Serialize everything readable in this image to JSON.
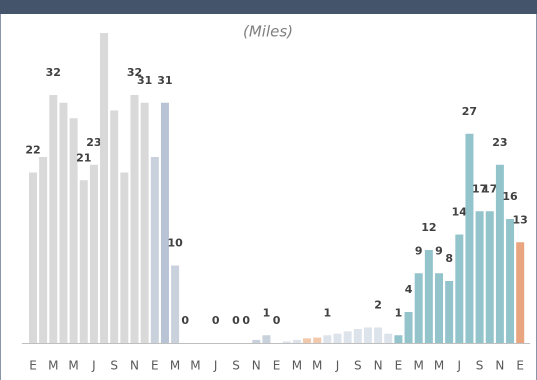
{
  "chart_data": {
    "type": "bar",
    "title": "(Miles)",
    "categories": [
      "E",
      null,
      "M",
      null,
      "M",
      null,
      "J",
      null,
      "S",
      null,
      "N",
      null,
      "E",
      null,
      "M",
      null,
      "M",
      null,
      "J",
      null,
      "S",
      null,
      "N",
      null,
      "E",
      null,
      "M",
      null,
      "M",
      null,
      "J",
      null,
      "S",
      null,
      "N",
      null,
      "E",
      null,
      "M",
      null,
      "M",
      null,
      "J",
      null,
      "S",
      null,
      "N",
      null,
      "E"
    ],
    "values": [
      22,
      24,
      32,
      31,
      29,
      21,
      23,
      40,
      30,
      22,
      32,
      31,
      24,
      31,
      10,
      0,
      0,
      0,
      0,
      0,
      0,
      0,
      0.4,
      1,
      0,
      0.2,
      0.4,
      0.6,
      0.7,
      1,
      1.2,
      1.5,
      1.8,
      2,
      2,
      1.2,
      1,
      4,
      9,
      12,
      9,
      8,
      14,
      27,
      17,
      17,
      23,
      16,
      13
    ],
    "value_labels": [
      "22",
      null,
      "32",
      null,
      null,
      "21",
      "23",
      null,
      null,
      null,
      "32",
      "31",
      null,
      "31",
      "10",
      "0",
      null,
      null,
      "0",
      null,
      "0",
      "0",
      null,
      "1",
      "0",
      null,
      null,
      null,
      null,
      "1",
      null,
      null,
      null,
      null,
      "2",
      null,
      "1",
      "4",
      "9",
      "12",
      "9",
      "8",
      "14",
      "27",
      "17",
      "17",
      "23",
      "16",
      "13"
    ],
    "colors": [
      "#d9d9d9",
      "#d9d9d9",
      "#d9d9d9",
      "#d9d9d9",
      "#d9d9d9",
      "#d9d9d9",
      "#d9d9d9",
      "#d9d9d9",
      "#d9d9d9",
      "#d9d9d9",
      "#d9d9d9",
      "#d9d9d9",
      "#c9d1dd",
      "#b8c4d6",
      "#c9d1dd",
      "#c9d1dd",
      "#c9d1dd",
      "#c9d1dd",
      "#c9d1dd",
      "#c9d1dd",
      "#c9d1dd",
      "#c9d1dd",
      "#c9d1dd",
      "#c9d1dd",
      "#dde3ea",
      "#dde3ea",
      "#dde3ea",
      "#f2c9ad",
      "#f2c9ad",
      "#dde3ea",
      "#dde3ea",
      "#dde3ea",
      "#dde3ea",
      "#dde3ea",
      "#dde3ea",
      "#dde3ea",
      "#93c4cc",
      "#93c4cc",
      "#93c4cc",
      "#93c4cc",
      "#93c4cc",
      "#93c4cc",
      "#93c4cc",
      "#93c4cc",
      "#93c4cc",
      "#93c4cc",
      "#93c4cc",
      "#93c4cc",
      "#e9a57f"
    ],
    "ylim": [
      0,
      40
    ]
  }
}
